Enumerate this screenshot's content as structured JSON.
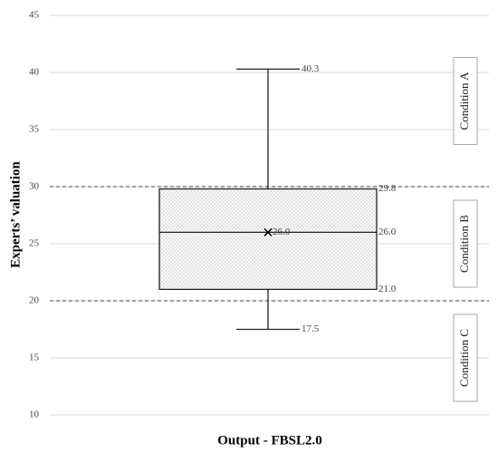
{
  "chart_data": {
    "type": "box",
    "y_label": "Experts’ valuation",
    "x_label": "Output - FBSL2.0",
    "ylim": [
      10,
      45
    ],
    "yticks": [
      10,
      15,
      20,
      25,
      30,
      35,
      40,
      45
    ],
    "grid": true,
    "values": [
      17.5,
      21.0,
      26.0,
      29.8,
      40.3
    ],
    "value_labels": [
      "17.5",
      "21.0",
      "26.0",
      "29.8",
      "40.3"
    ],
    "mean": 26.0,
    "mean_label": "26.0",
    "reference_lines": [
      30,
      20
    ],
    "annotations": [
      "Condition A",
      "Condition B",
      "Condition C"
    ]
  }
}
